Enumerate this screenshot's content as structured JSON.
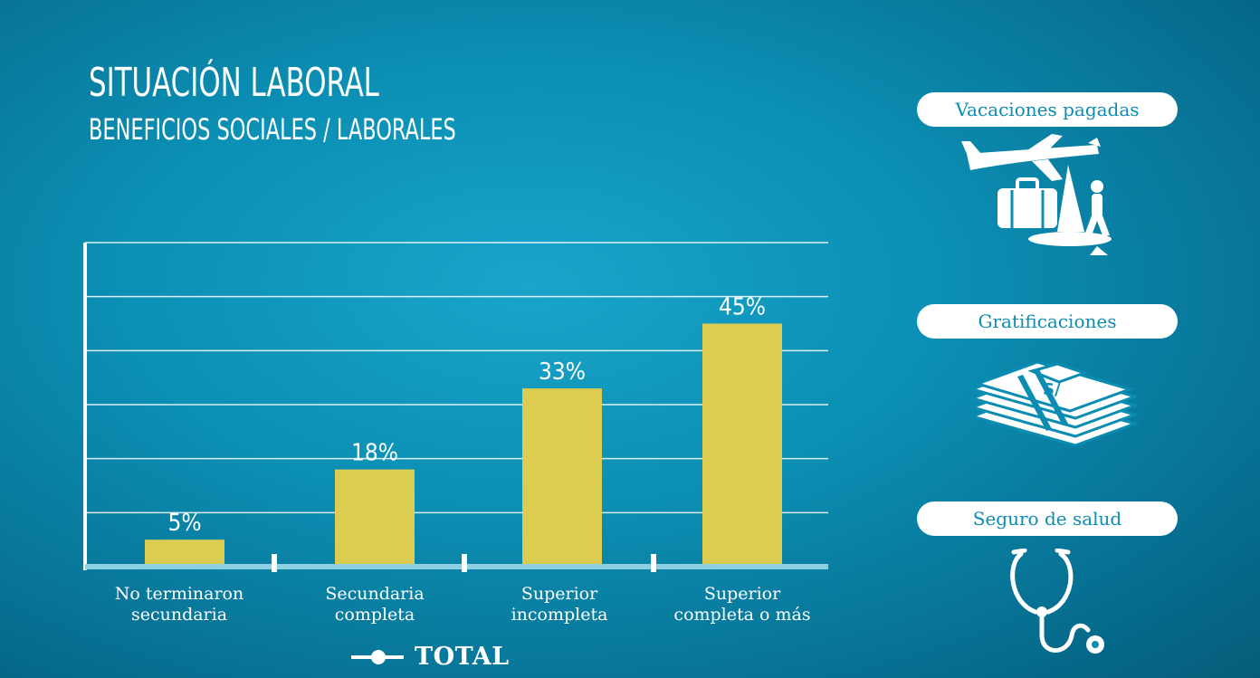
{
  "header": {
    "title": "SITUACIÓN LABORAL",
    "subtitle": "BENEFICIOS SOCIALES / LABORALES"
  },
  "chart_data": {
    "type": "bar",
    "categories": [
      "No terminaron secundaria",
      "Secundaria completa",
      "Superior incompleta",
      "Superior completa o más"
    ],
    "category_lines": [
      [
        "No terminaron",
        "secundaria"
      ],
      [
        "Secundaria",
        "completa"
      ],
      [
        "Superior",
        "incompleta"
      ],
      [
        "Superior",
        "completa o más"
      ]
    ],
    "series": [
      {
        "name": "TOTAL",
        "values": [
          5,
          18,
          33,
          45
        ]
      }
    ],
    "data_labels": [
      "5%",
      "18%",
      "33%",
      "45%"
    ],
    "ylim": [
      0,
      60
    ],
    "grid": true,
    "legend": "bottom",
    "colors": {
      "bar": "#dccd50",
      "grid": "#ffffff"
    }
  },
  "benefits": [
    {
      "label": "Vacaciones pagadas",
      "icon": "vacation-icon"
    },
    {
      "label": "Gratificaciones",
      "icon": "money-stack-icon"
    },
    {
      "label": "Seguro de salud",
      "icon": "stethoscope-icon"
    }
  ]
}
